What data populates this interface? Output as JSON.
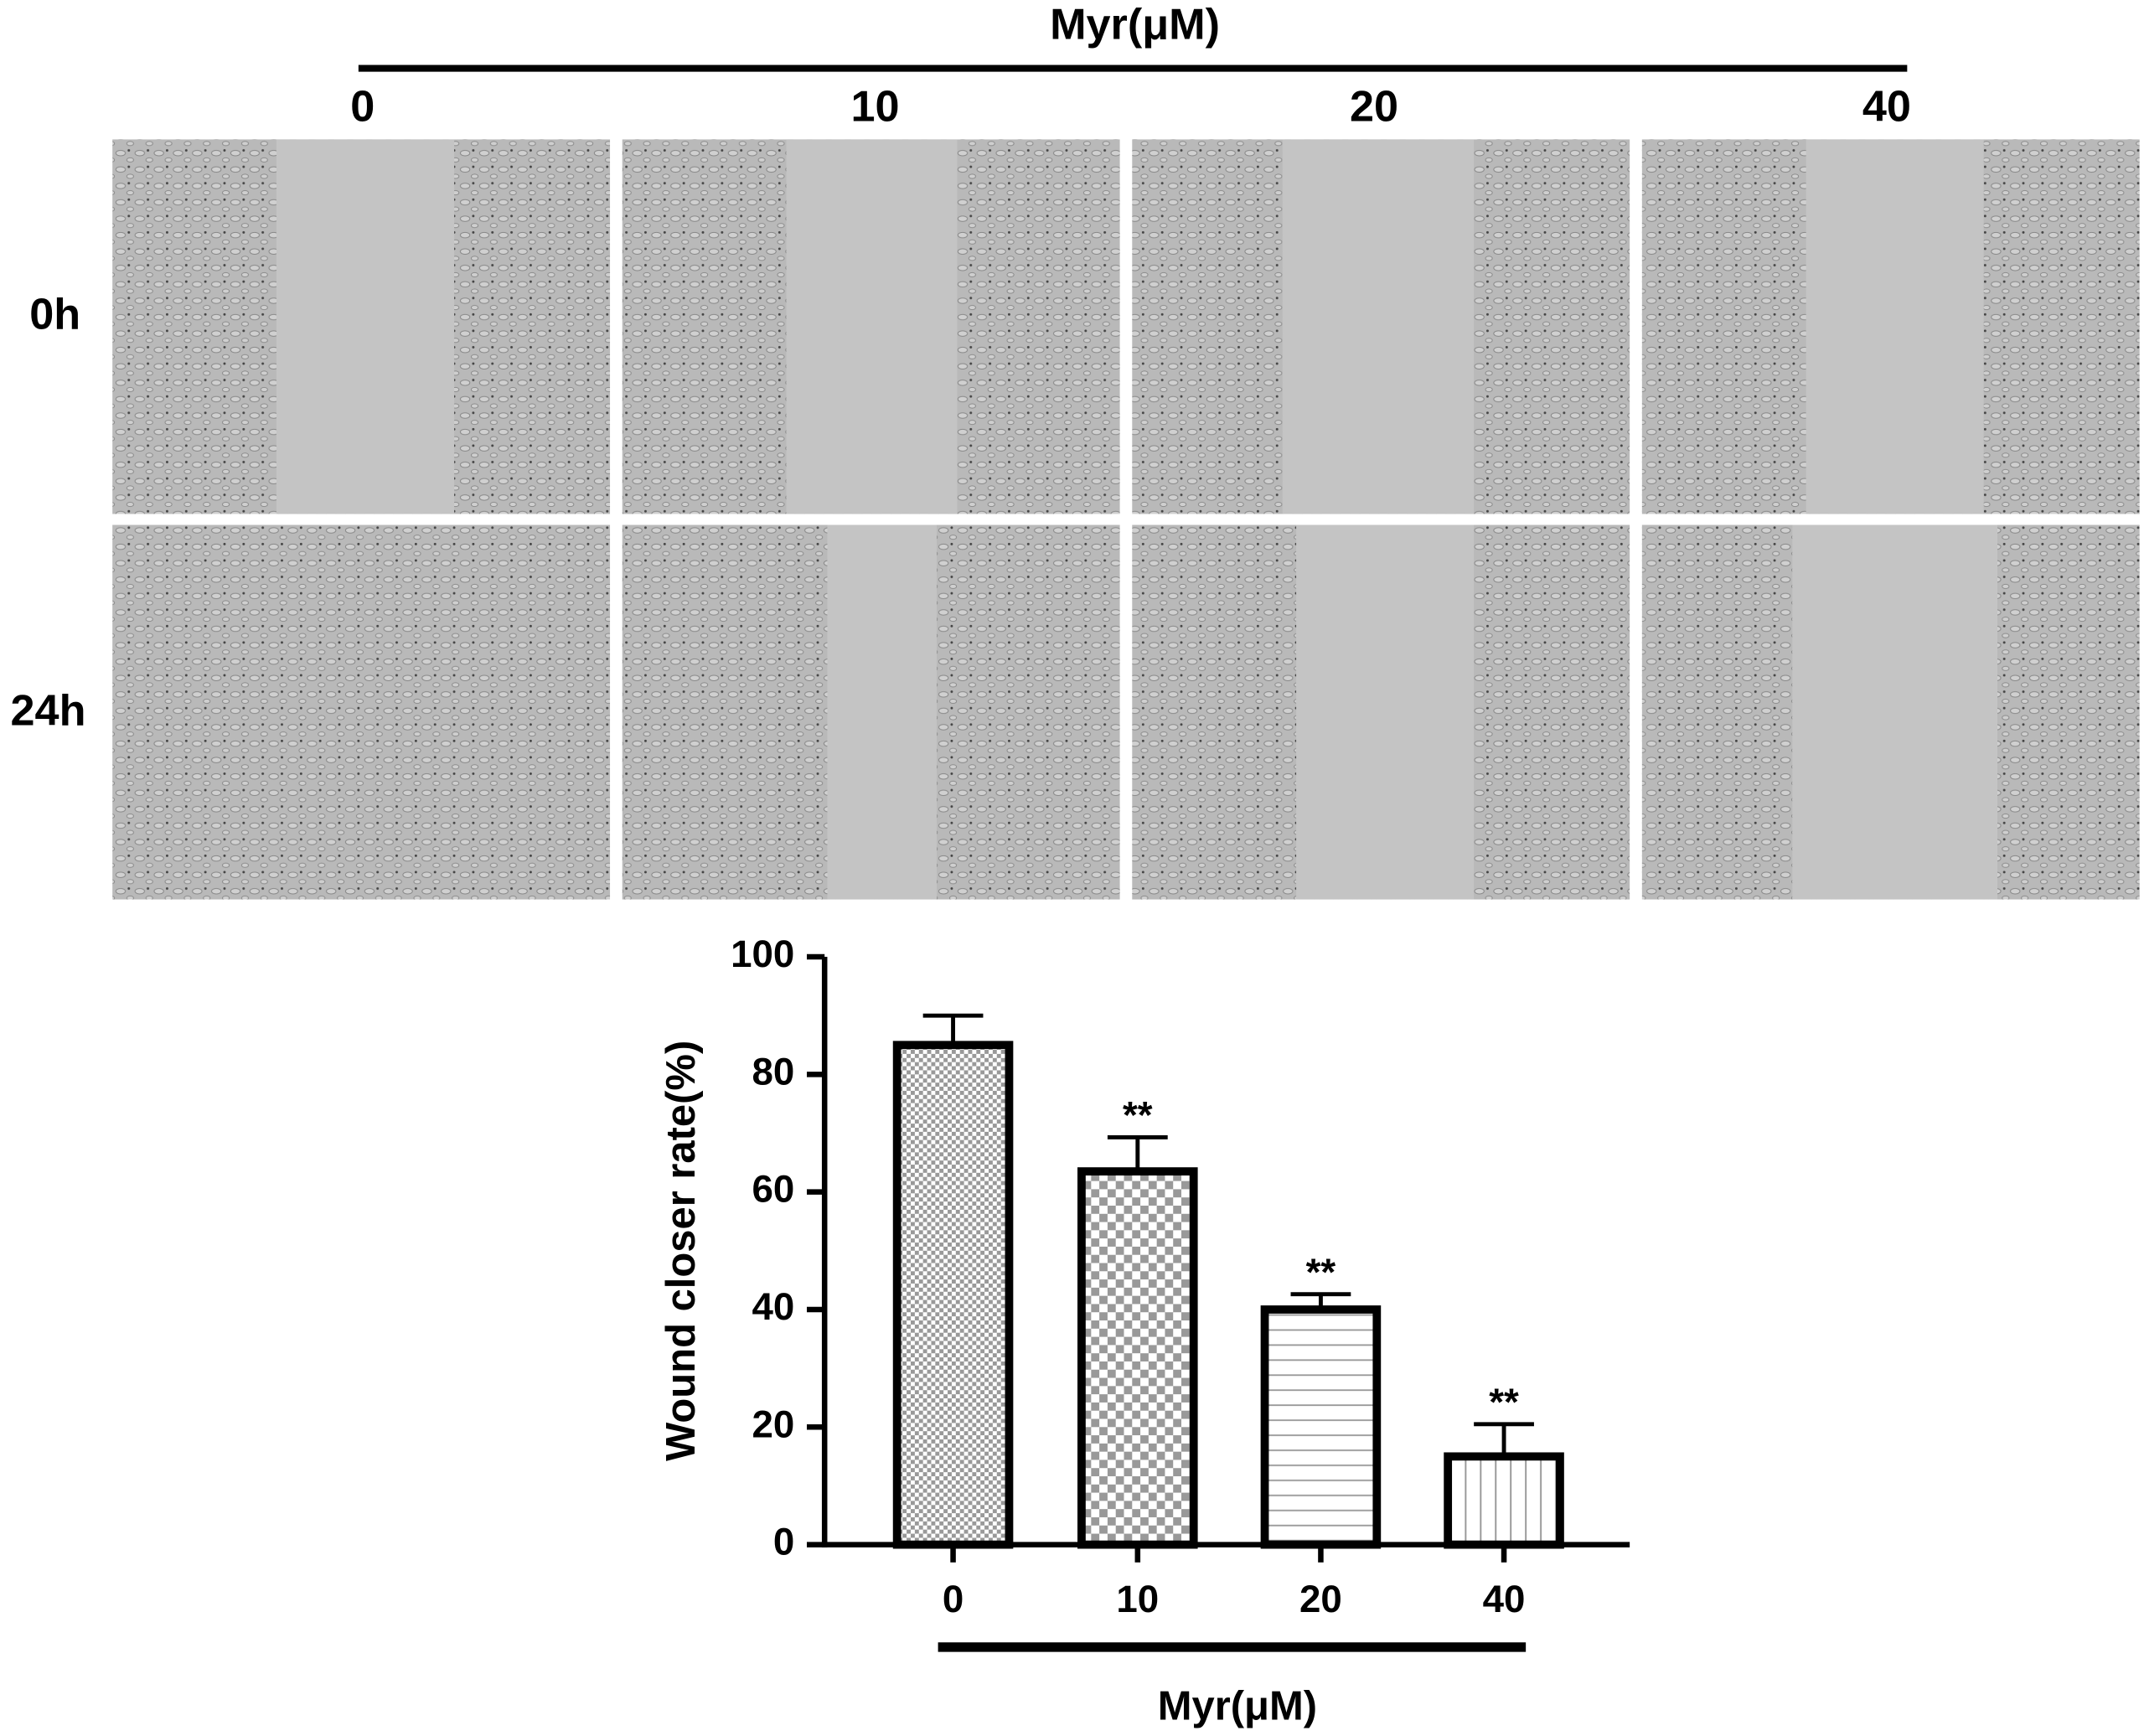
{
  "panel": {
    "title": "Myr(μM)",
    "columns": [
      "0",
      "10",
      "20",
      "40"
    ],
    "rows": [
      "0h",
      "24h"
    ]
  },
  "chart_data": {
    "type": "bar",
    "y_label": "Wound closer rate(%)",
    "x_label": "Myr(μM)",
    "categories": [
      "0",
      "10",
      "20",
      "40"
    ],
    "values": [
      85,
      63.5,
      40,
      15
    ],
    "errors": [
      5,
      5.8,
      2.6,
      5.5
    ],
    "annotations": [
      {
        "category": "10",
        "text": "**"
      },
      {
        "category": "20",
        "text": "**"
      },
      {
        "category": "40",
        "text": "**"
      }
    ],
    "color": "#000000",
    "ylim": [
      0,
      100
    ],
    "yticks": [
      0,
      20,
      40,
      60,
      80,
      100
    ],
    "grid": false
  }
}
